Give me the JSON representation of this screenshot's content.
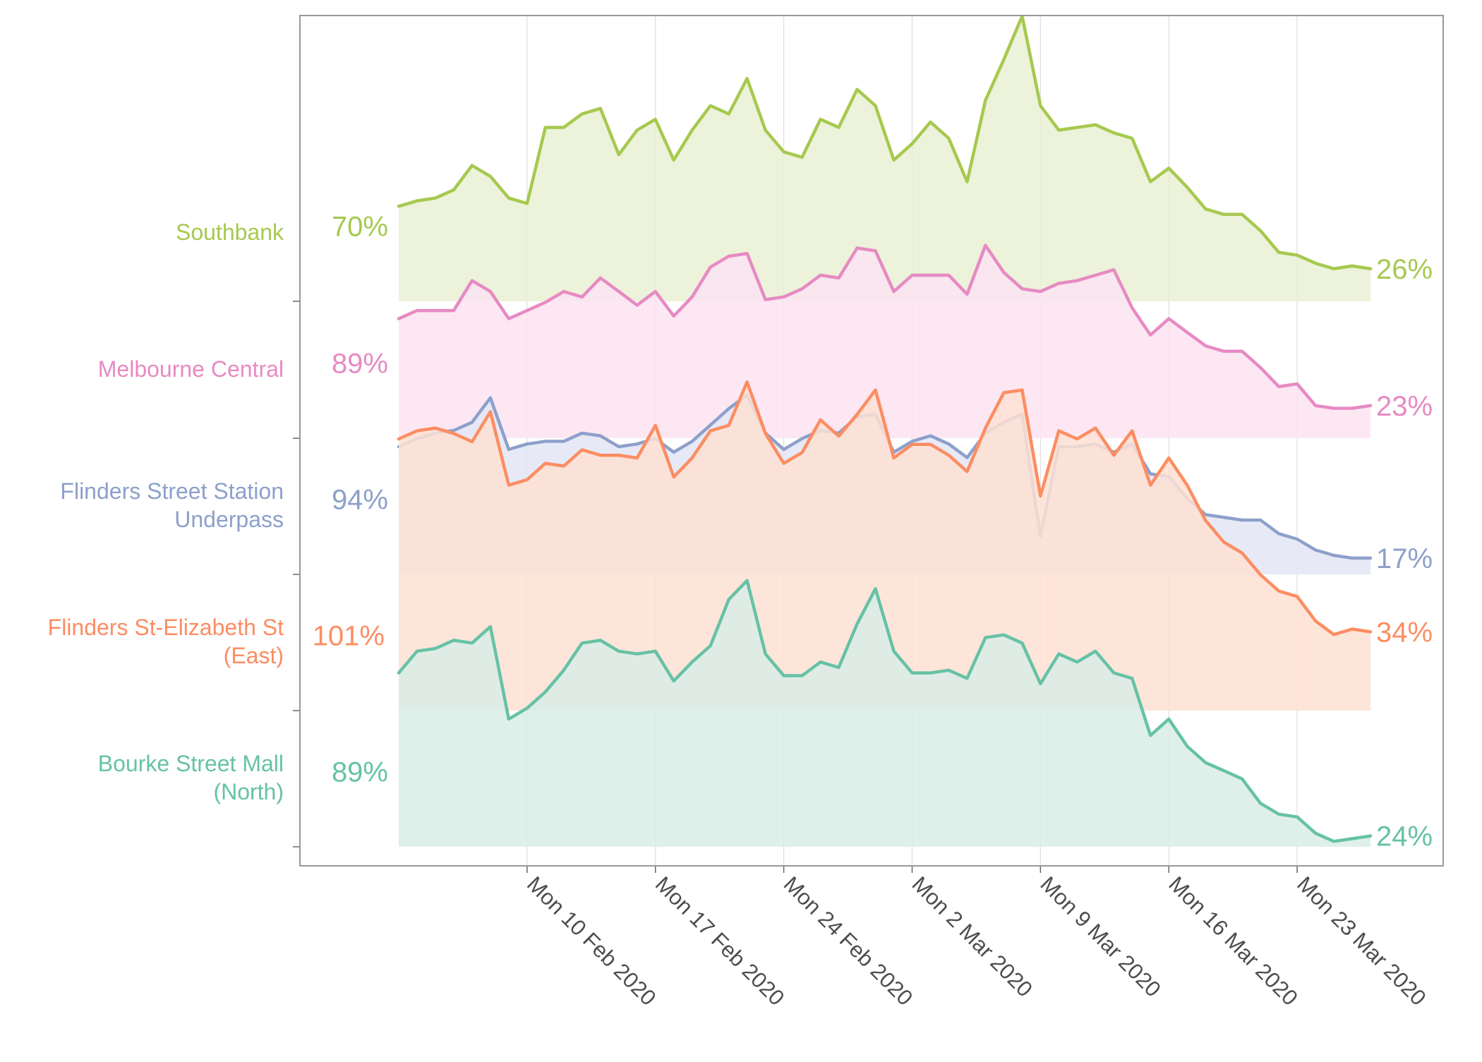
{
  "chart_data": {
    "type": "area",
    "title": "",
    "xlabel": "",
    "ylabel": "",
    "x_ticks": [
      "Mon 10 Feb 2020",
      "Mon 17 Feb 2020",
      "Mon 24 Feb 2020",
      "Mon  2 Mar 2020",
      "Mon  9 Mar 2020",
      "Mon 16 Mar 2020",
      "Mon 23 Mar 2020"
    ],
    "x_range_days": [
      0,
      54
    ],
    "first_day_index": 0,
    "tick_day_indices": [
      7,
      14,
      21,
      28,
      35,
      42,
      49
    ],
    "y_range_per_row": [
      0,
      1.05
    ],
    "series": [
      {
        "name": "Southbank",
        "start_label": "70%",
        "end_label": "26%",
        "color": "#a6c94f",
        "fill": "#e9f1d3",
        "values": [
          0.35,
          0.37,
          0.38,
          0.41,
          0.5,
          0.46,
          0.38,
          0.36,
          0.64,
          0.64,
          0.69,
          0.71,
          0.54,
          0.63,
          0.67,
          0.52,
          0.63,
          0.72,
          0.69,
          0.82,
          0.63,
          0.55,
          0.53,
          0.67,
          0.64,
          0.78,
          0.72,
          0.52,
          0.58,
          0.66,
          0.6,
          0.44,
          0.74,
          0.89,
          1.05,
          0.72,
          0.63,
          0.64,
          0.65,
          0.62,
          0.6,
          0.44,
          0.49,
          0.42,
          0.34,
          0.32,
          0.32,
          0.26,
          0.18,
          0.17,
          0.14,
          0.12,
          0.13,
          0.12
        ]
      },
      {
        "name": "Melbourne Central",
        "start_label": "89%",
        "end_label": "23%",
        "color": "#e78ac3",
        "fill": "#fbe3f1",
        "values": [
          0.44,
          0.47,
          0.47,
          0.47,
          0.58,
          0.54,
          0.44,
          0.47,
          0.5,
          0.54,
          0.52,
          0.59,
          0.54,
          0.49,
          0.54,
          0.45,
          0.52,
          0.63,
          0.67,
          0.68,
          0.51,
          0.52,
          0.55,
          0.6,
          0.59,
          0.7,
          0.69,
          0.54,
          0.6,
          0.6,
          0.6,
          0.53,
          0.71,
          0.61,
          0.55,
          0.54,
          0.57,
          0.58,
          0.6,
          0.62,
          0.48,
          0.38,
          0.44,
          0.39,
          0.34,
          0.32,
          0.32,
          0.26,
          0.19,
          0.2,
          0.12,
          0.11,
          0.11,
          0.12
        ]
      },
      {
        "name": "Flinders Street Station\nUnderpass",
        "start_label": "94%",
        "end_label": "17%",
        "color": "#8da0cb",
        "fill": "#e3e6f4",
        "values": [
          0.47,
          0.5,
          0.52,
          0.53,
          0.56,
          0.65,
          0.46,
          0.48,
          0.49,
          0.49,
          0.52,
          0.51,
          0.47,
          0.48,
          0.5,
          0.45,
          0.49,
          0.55,
          0.61,
          0.66,
          0.52,
          0.46,
          0.5,
          0.53,
          0.52,
          0.58,
          0.59,
          0.45,
          0.49,
          0.51,
          0.48,
          0.43,
          0.52,
          0.56,
          0.59,
          0.14,
          0.47,
          0.47,
          0.48,
          0.45,
          0.48,
          0.37,
          0.36,
          0.28,
          0.22,
          0.21,
          0.2,
          0.2,
          0.15,
          0.13,
          0.09,
          0.07,
          0.06,
          0.06
        ]
      },
      {
        "name": "Flinders St-Elizabeth St\n(East)",
        "start_label": "101%",
        "end_label": "34%",
        "color": "#fc8d62",
        "fill": "#fee0d4",
        "values": [
          1.0,
          1.03,
          1.04,
          1.02,
          0.99,
          1.1,
          0.83,
          0.85,
          0.91,
          0.9,
          0.96,
          0.94,
          0.94,
          0.93,
          1.05,
          0.86,
          0.93,
          1.03,
          1.05,
          1.21,
          1.02,
          0.91,
          0.95,
          1.07,
          1.01,
          1.09,
          1.18,
          0.93,
          0.98,
          0.98,
          0.94,
          0.88,
          1.04,
          1.17,
          1.18,
          0.79,
          1.03,
          1.0,
          1.04,
          0.94,
          1.03,
          0.83,
          0.93,
          0.83,
          0.7,
          0.62,
          0.58,
          0.5,
          0.44,
          0.42,
          0.33,
          0.28,
          0.3,
          0.29
        ]
      },
      {
        "name": "Bourke Street Mall\n(North)",
        "start_label": "89%",
        "end_label": "24%",
        "color": "#66c2a5",
        "fill": "#d9ede7",
        "values": [
          0.64,
          0.72,
          0.73,
          0.76,
          0.75,
          0.81,
          0.47,
          0.51,
          0.57,
          0.65,
          0.75,
          0.76,
          0.72,
          0.71,
          0.72,
          0.61,
          0.68,
          0.74,
          0.91,
          0.98,
          0.71,
          0.63,
          0.63,
          0.68,
          0.66,
          0.82,
          0.95,
          0.72,
          0.64,
          0.64,
          0.65,
          0.62,
          0.77,
          0.78,
          0.75,
          0.6,
          0.71,
          0.68,
          0.72,
          0.64,
          0.62,
          0.41,
          0.47,
          0.37,
          0.31,
          0.28,
          0.25,
          0.16,
          0.12,
          0.11,
          0.05,
          0.02,
          0.03,
          0.04
        ]
      }
    ]
  }
}
